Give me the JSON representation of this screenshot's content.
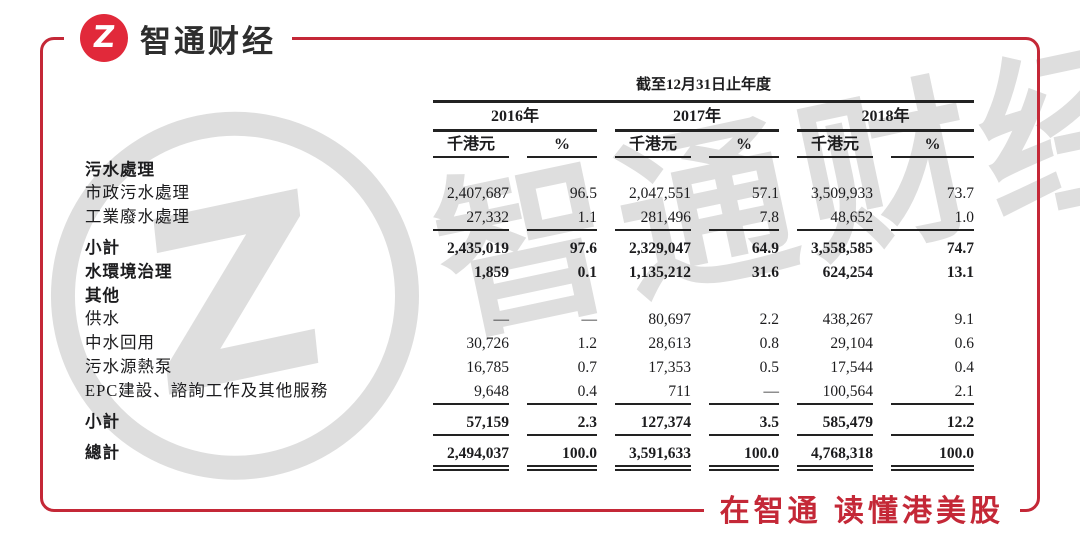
{
  "brand": {
    "logo_text": "智通财经",
    "logo_symbol": "Z",
    "slogan": "在智通  读懂港美股"
  },
  "colors": {
    "frame_red": "#c42837",
    "logo_red": "#e1293a",
    "text": "#1c1c1e",
    "watermark": "#dedede"
  },
  "watermark": {
    "symbol": "Z",
    "text": "智通财经"
  },
  "table": {
    "title": "截至12月31日止年度",
    "years": [
      "2016年",
      "2017年",
      "2018年"
    ],
    "col_headers": [
      "千港元",
      "%",
      "千港元",
      "%",
      "千港元",
      "%"
    ],
    "rows": [
      {
        "label": "污水處理",
        "bold": true,
        "values": [],
        "rule": null,
        "gap": false
      },
      {
        "label": "市政污水處理",
        "bold": false,
        "values": [
          "2,407,687",
          "96.5",
          "2,047,551",
          "57.1",
          "3,509,933",
          "73.7"
        ],
        "rule": null,
        "gap": false
      },
      {
        "label": "工業廢水處理",
        "bold": false,
        "values": [
          "27,332",
          "1.1",
          "281,496",
          "7.8",
          "48,652",
          "1.0"
        ],
        "rule": "single",
        "gap": false
      },
      {
        "label": "小計",
        "bold": true,
        "values": [
          "2,435,019",
          "97.6",
          "2,329,047",
          "64.9",
          "3,558,585",
          "74.7"
        ],
        "rule": null,
        "gap": true
      },
      {
        "label": "水環境治理",
        "bold": true,
        "values": [
          "1,859",
          "0.1",
          "1,135,212",
          "31.6",
          "624,254",
          "13.1"
        ],
        "rule": null,
        "gap": false
      },
      {
        "label": "其他",
        "bold": true,
        "values": [],
        "rule": null,
        "gap": false
      },
      {
        "label": "供水",
        "bold": false,
        "values": [
          "—",
          "—",
          "80,697",
          "2.2",
          "438,267",
          "9.1"
        ],
        "rule": null,
        "gap": false
      },
      {
        "label": "中水回用",
        "bold": false,
        "values": [
          "30,726",
          "1.2",
          "28,613",
          "0.8",
          "29,104",
          "0.6"
        ],
        "rule": null,
        "gap": false
      },
      {
        "label": "污水源熱泵",
        "bold": false,
        "values": [
          "16,785",
          "0.7",
          "17,353",
          "0.5",
          "17,544",
          "0.4"
        ],
        "rule": null,
        "gap": false
      },
      {
        "label": "EPC建設、諮詢工作及其他服務",
        "bold": false,
        "values": [
          "9,648",
          "0.4",
          "711",
          "—",
          "100,564",
          "2.1"
        ],
        "rule": "single",
        "gap": false
      },
      {
        "label": "小計",
        "bold": true,
        "values": [
          "57,159",
          "2.3",
          "127,374",
          "3.5",
          "585,479",
          "12.2"
        ],
        "rule": "single",
        "gap": true
      },
      {
        "label": "總計",
        "bold": true,
        "values": [
          "2,494,037",
          "100.0",
          "3,591,633",
          "100.0",
          "4,768,318",
          "100.0"
        ],
        "rule": "double",
        "gap": true
      }
    ]
  }
}
